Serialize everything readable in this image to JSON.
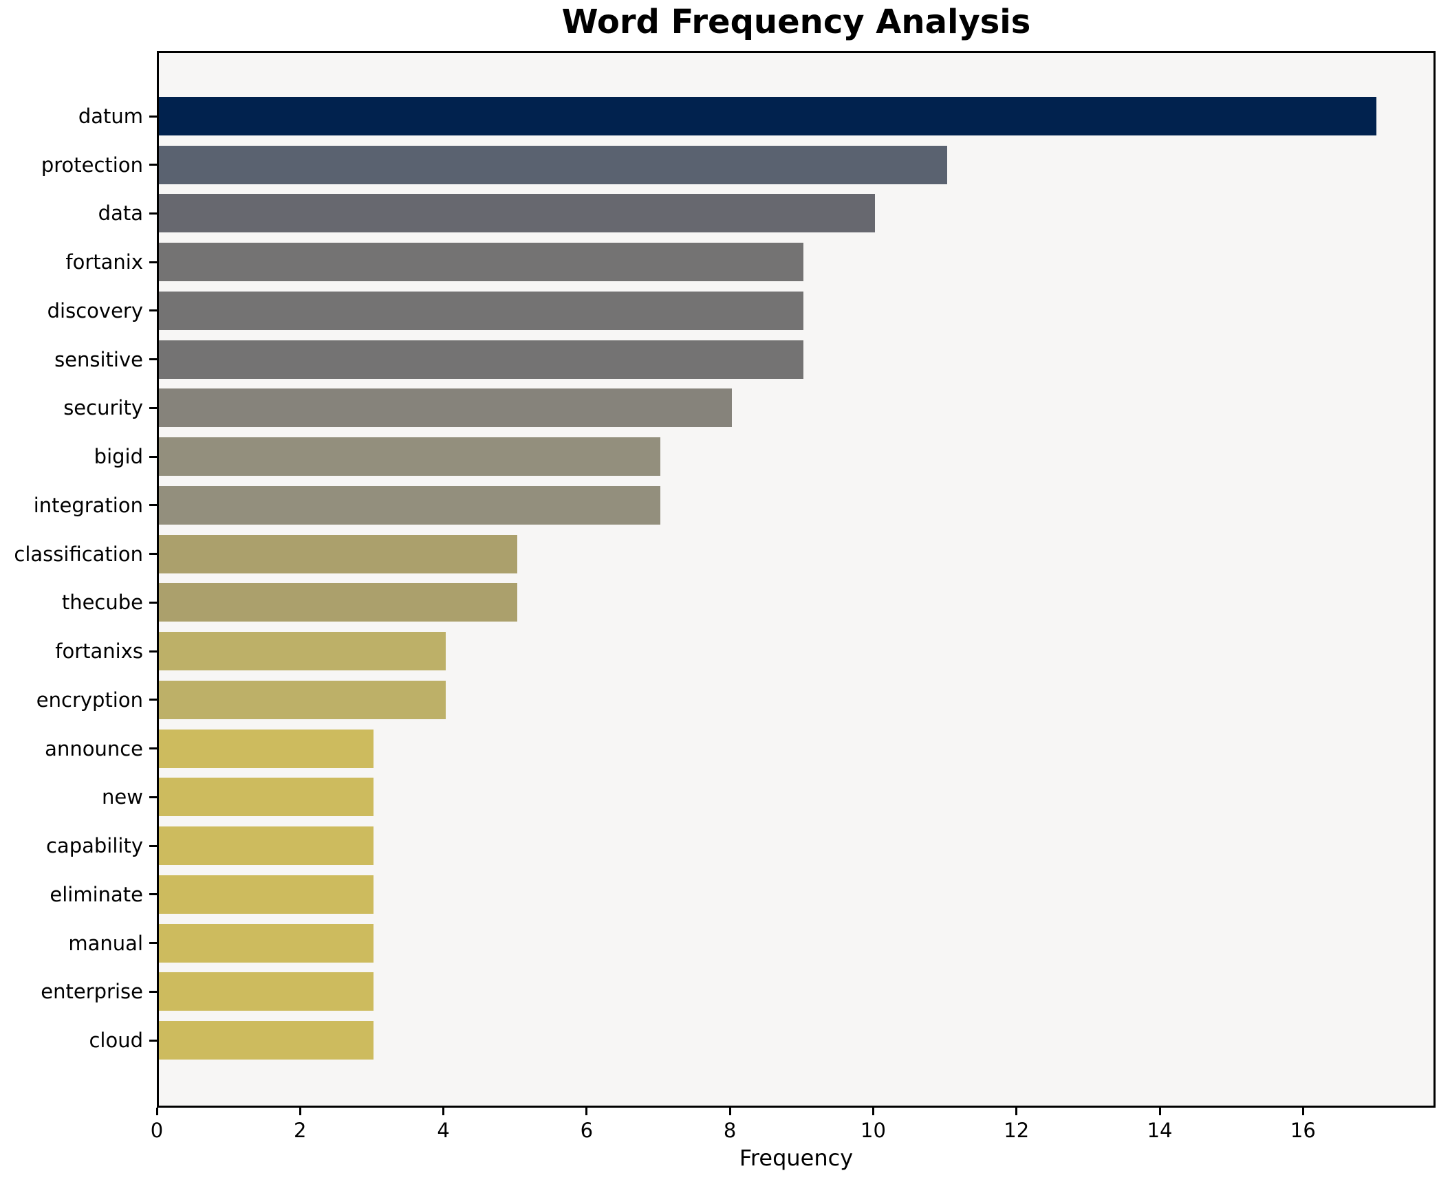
{
  "chart_data": {
    "type": "bar",
    "orientation": "horizontal",
    "title": "Word Frequency Analysis",
    "xlabel": "Frequency",
    "categories": [
      "datum",
      "protection",
      "data",
      "fortanix",
      "discovery",
      "sensitive",
      "security",
      "bigid",
      "integration",
      "classification",
      "thecube",
      "fortanixs",
      "encryption",
      "announce",
      "new",
      "capability",
      "eliminate",
      "manual",
      "enterprise",
      "cloud"
    ],
    "values": [
      17,
      11,
      10,
      9,
      9,
      9,
      8,
      7,
      7,
      5,
      5,
      4,
      4,
      3,
      3,
      3,
      3,
      3,
      3,
      3
    ],
    "bar_colors": [
      "#01224e",
      "#5a6270",
      "#67686f",
      "#747373",
      "#747373",
      "#747373",
      "#86837b",
      "#938f7d",
      "#938f7d",
      "#aba06c",
      "#aba06c",
      "#bdb068",
      "#bdb068",
      "#cdbb5e",
      "#cdbb5e",
      "#cdbb5e",
      "#cdbb5e",
      "#cdbb5e",
      "#cdbb5e",
      "#cdbb5e"
    ],
    "xlim": [
      0,
      17.85
    ],
    "xticks": [
      0,
      2,
      4,
      6,
      8,
      10,
      12,
      14,
      16
    ],
    "grid": false,
    "plot_background": "#f7f6f5",
    "figure_background": "#ffffff",
    "spine_color": "#000000"
  }
}
